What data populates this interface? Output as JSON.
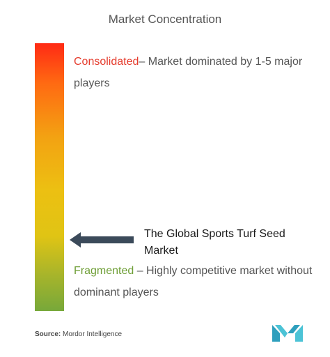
{
  "title": "Market Concentration",
  "consolidated": {
    "label": "Consolidated",
    "description": "– Market dominated by 1-5 major players"
  },
  "fragmented": {
    "label": "Fragmented",
    "description": " – Highly competitive market without dominant players"
  },
  "market_label": "The Global Sports Turf Seed Market",
  "source": {
    "prefix": "Source:",
    "text": " Mordor Intelligence"
  },
  "colors": {
    "consolidated": "#e53b2c",
    "fragmented": "#6e9e36",
    "arrow": "#3b4a5a",
    "logo": "#35b0c8"
  },
  "icons": {
    "arrow": "left-arrow-icon",
    "logo": "mordor-intelligence-logo"
  }
}
